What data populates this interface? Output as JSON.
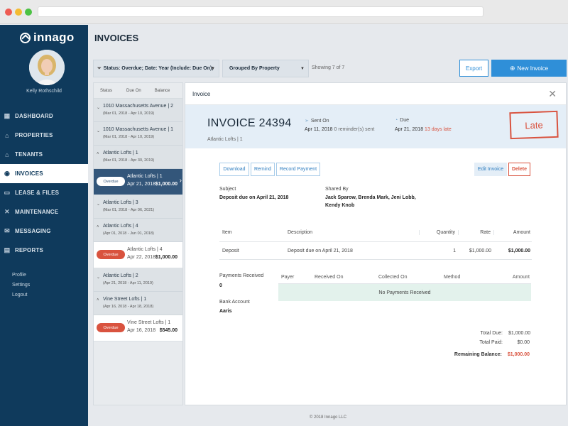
{
  "app": {
    "brand": "innago",
    "user_name": "Kelly Rothschild",
    "footer": "© 2018 Innago LLC"
  },
  "sidebar": {
    "items": [
      {
        "label": "DASHBOARD",
        "icon": "dashboard-icon"
      },
      {
        "label": "PROPERTIES",
        "icon": "home-icon"
      },
      {
        "label": "TENANTS",
        "icon": "tenants-icon"
      },
      {
        "label": "INVOICES",
        "icon": "invoice-icon",
        "active": true
      },
      {
        "label": "LEASE & FILES",
        "icon": "file-icon"
      },
      {
        "label": "MAINTENANCE",
        "icon": "tools-icon"
      },
      {
        "label": "MESSAGING",
        "icon": "mail-icon"
      },
      {
        "label": "REPORTS",
        "icon": "reports-icon"
      }
    ],
    "links": [
      "Profile",
      "Settings",
      "Logout"
    ]
  },
  "header": {
    "title": "INVOICES",
    "filter": "Status: Overdue; Date: Year (Include: Due On);",
    "group_by": "Grouped By Property",
    "showing": "Showing 7 of 7",
    "export_label": "Export",
    "new_label": "New Invoice"
  },
  "list": {
    "columns": [
      "Status",
      "Due On",
      "Balance"
    ],
    "rows": [
      {
        "type": "group",
        "name": "1010 Massachusetts Avenue | 2",
        "dates": "(Mar 01, 2018 - Apr 10, 2019)"
      },
      {
        "type": "group",
        "name": "1010 Massachusetts Avenue | 1",
        "dates": "(Mar 01, 2018 - Apr 10, 2019)"
      },
      {
        "type": "group",
        "name": "Atlantic Lofts | 1",
        "dates": "(Mar 01, 2018 - Apr 30, 2019)"
      },
      {
        "type": "invoice",
        "status": "Overdue",
        "name": "Atlantic Lofts | 1",
        "date": "Apr 21, 2018",
        "amount": "$1,000.00",
        "selected": true
      },
      {
        "type": "group",
        "name": "Atlantic Lofts | 3",
        "dates": "(Mar 01, 2018 - Apr 06, 2021)"
      },
      {
        "type": "group",
        "name": "Atlantic Lofts | 4",
        "dates": "(Apr 01, 2018 - Jun 01, 2018)"
      },
      {
        "type": "invoice",
        "status": "Overdue",
        "name": "Atlantic Lofts | 4",
        "date": "Apr 22, 2018",
        "amount": "$1,000.00"
      },
      {
        "type": "group",
        "name": "Atlantic Lofts | 2",
        "dates": "(Apr 21, 2018 - Apr 11, 2019)"
      },
      {
        "type": "group",
        "name": "Vine Street Lofts | 1",
        "dates": "(Apr 16, 2018 - Apr 18, 2018)"
      },
      {
        "type": "invoice",
        "status": "Overdue",
        "name": "Vine Street Lofts | 1",
        "date": "Apr 16, 2018",
        "amount": "$545.00"
      }
    ]
  },
  "detail": {
    "panel_title": "Invoice",
    "invoice_number": "INVOICE 24394",
    "property": "Atlantic Lofts | 1",
    "sent_label": "Sent On",
    "sent_value": "Apr 11, 2018",
    "sent_note": "0 reminder(s) sent",
    "due_label": "Due",
    "due_value": "Apr 21, 2018",
    "due_late": "13 days late",
    "stamp": "Late",
    "buttons": {
      "download": "Download",
      "remind": "Remind",
      "record": "Record Payment",
      "edit": "Edit Invoice",
      "delete": "Delete"
    },
    "subject_label": "Subject",
    "subject_value": "Deposit due on April 21, 2018",
    "shared_label": "Shared By",
    "shared_value": "Jack Sparow, Brenda Mark, Jeni Lobb, Kendy Knob",
    "items_columns": [
      "Item",
      "Description",
      "Quantity",
      "Rate",
      "Amount"
    ],
    "items": [
      {
        "item": "Deposit",
        "description": "Deposit due on April 21, 2018",
        "quantity": "1",
        "rate": "$1,000.00",
        "amount": "$1,000.00"
      }
    ],
    "payments_label": "Payments Received",
    "payments_count": "0",
    "bank_label": "Bank Account",
    "bank_value": "Aaris",
    "payments_columns": [
      "Payer",
      "Received On",
      "Collected On",
      "Method",
      "Amount"
    ],
    "no_payments": "No Payments Received",
    "total_due_label": "Total Due:",
    "total_due": "$1,000.00",
    "total_paid_label": "Total Paid:",
    "total_paid": "$0.00",
    "remaining_label": "Remaining Balance:",
    "remaining": "$1,000.00"
  },
  "colors": {
    "sidebar": "#0f3a5c",
    "accent": "#2f8fd8",
    "overdue": "#d9533f"
  }
}
